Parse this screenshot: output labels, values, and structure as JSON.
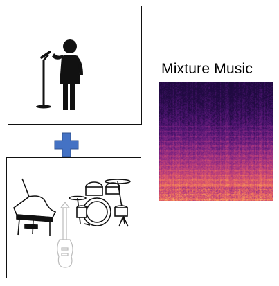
{
  "mixture": {
    "title": "Mixture Music",
    "colormap": [
      "#1f0a40",
      "#4b1470",
      "#7d2482",
      "#b23a7e",
      "#e05a68",
      "#f58b59",
      "#fcc27a"
    ]
  },
  "vocal_panel": {
    "icon": "singer-with-microphone-icon"
  },
  "instrument_panel": {
    "icons": [
      "grand-piano-icon",
      "electric-guitar-icon",
      "drum-kit-icon"
    ]
  },
  "combine_symbol": {
    "icon": "plus-icon",
    "color": "#4472c4"
  }
}
